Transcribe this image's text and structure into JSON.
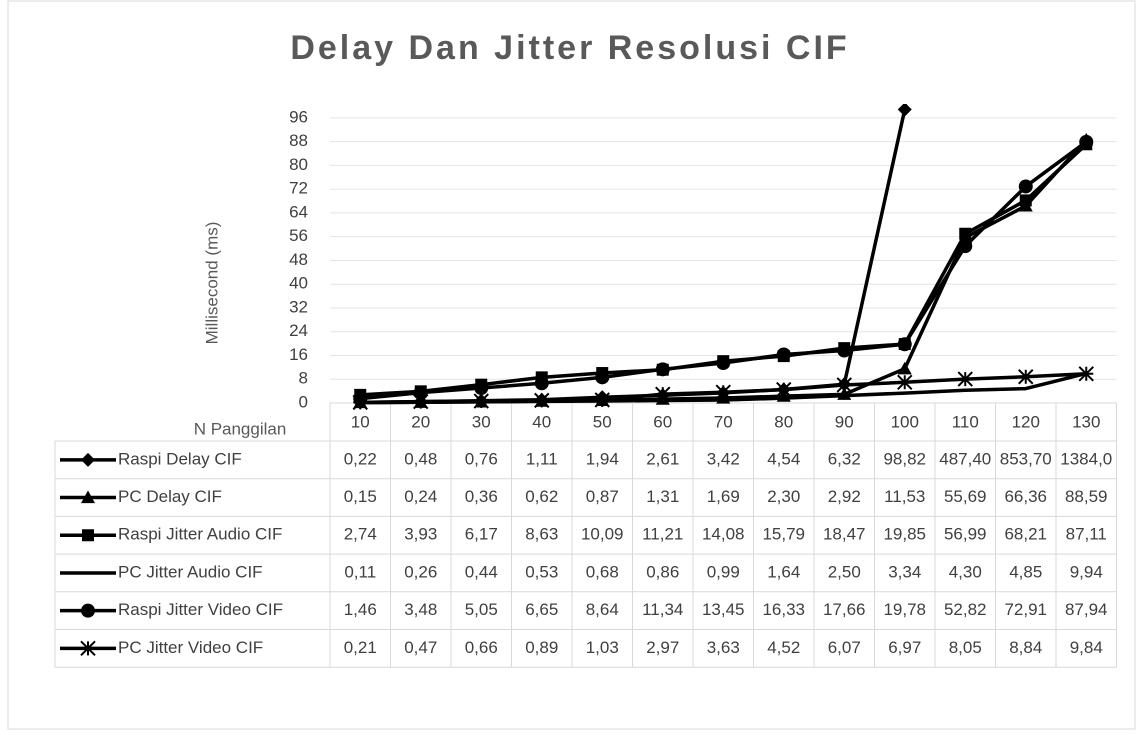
{
  "chart_data": {
    "type": "line",
    "title": "Delay Dan Jitter Resolusi CIF",
    "y_label": "Millisecond (ms)",
    "x_label": "N Panggilan",
    "categories": [
      "10",
      "20",
      "30",
      "40",
      "50",
      "60",
      "70",
      "80",
      "90",
      "100",
      "110",
      "120",
      "130"
    ],
    "ylim": [
      0,
      100
    ],
    "yticks": [
      0,
      8,
      16,
      24,
      32,
      40,
      48,
      56,
      64,
      72,
      80,
      88,
      96
    ],
    "grid": true,
    "data_table": true,
    "series": [
      {
        "name": "Raspi Delay CIF",
        "color": "#000000",
        "marker": "diamond",
        "values": [
          0.22,
          0.48,
          0.76,
          1.11,
          1.94,
          2.61,
          3.42,
          4.54,
          6.32,
          98.82,
          487.4,
          853.7,
          1384.0
        ],
        "value_labels": [
          "0,22",
          "0,48",
          "0,76",
          "1,11",
          "1,94",
          "2,61",
          "3,42",
          "4,54",
          "6,32",
          "98,82",
          "487,40",
          "853,70",
          "1384,0"
        ]
      },
      {
        "name": "PC Delay CIF",
        "color": "#000000",
        "marker": "triangle",
        "values": [
          0.15,
          0.24,
          0.36,
          0.62,
          0.87,
          1.31,
          1.69,
          2.3,
          2.92,
          11.53,
          55.69,
          66.36,
          88.59
        ],
        "value_labels": [
          "0,15",
          "0,24",
          "0,36",
          "0,62",
          "0,87",
          "1,31",
          "1,69",
          "2,30",
          "2,92",
          "11,53",
          "55,69",
          "66,36",
          "88,59"
        ]
      },
      {
        "name": "Raspi Jitter Audio CIF",
        "color": "#000000",
        "marker": "square",
        "values": [
          2.74,
          3.93,
          6.17,
          8.63,
          10.09,
          11.21,
          14.08,
          15.79,
          18.47,
          19.85,
          56.99,
          68.21,
          87.11
        ],
        "value_labels": [
          "2,74",
          "3,93",
          "6,17",
          "8,63",
          "10,09",
          "11,21",
          "14,08",
          "15,79",
          "18,47",
          "19,85",
          "56,99",
          "68,21",
          "87,11"
        ]
      },
      {
        "name": "PC Jitter Audio CIF",
        "color": "#000000",
        "marker": "none",
        "values": [
          0.11,
          0.26,
          0.44,
          0.53,
          0.68,
          0.86,
          0.99,
          1.64,
          2.5,
          3.34,
          4.3,
          4.85,
          9.94
        ],
        "value_labels": [
          "0,11",
          "0,26",
          "0,44",
          "0,53",
          "0,68",
          "0,86",
          "0,99",
          "1,64",
          "2,50",
          "3,34",
          "4,30",
          "4,85",
          "9,94"
        ]
      },
      {
        "name": "Raspi Jitter Video CIF",
        "color": "#000000",
        "marker": "circle",
        "values": [
          1.46,
          3.48,
          5.05,
          6.65,
          8.64,
          11.34,
          13.45,
          16.33,
          17.66,
          19.78,
          52.82,
          72.91,
          87.94
        ],
        "value_labels": [
          "1,46",
          "3,48",
          "5,05",
          "6,65",
          "8,64",
          "11,34",
          "13,45",
          "16,33",
          "17,66",
          "19,78",
          "52,82",
          "72,91",
          "87,94"
        ]
      },
      {
        "name": "PC Jitter Video CIF",
        "color": "#000000",
        "marker": "star",
        "values": [
          0.21,
          0.47,
          0.66,
          0.89,
          1.03,
          2.97,
          3.63,
          4.52,
          6.07,
          6.97,
          8.05,
          8.84,
          9.84
        ],
        "value_labels": [
          "0,21",
          "0,47",
          "0,66",
          "0,89",
          "1,03",
          "2,97",
          "3,63",
          "4,52",
          "6,07",
          "6,97",
          "8,05",
          "8,84",
          "9,84"
        ]
      }
    ]
  }
}
